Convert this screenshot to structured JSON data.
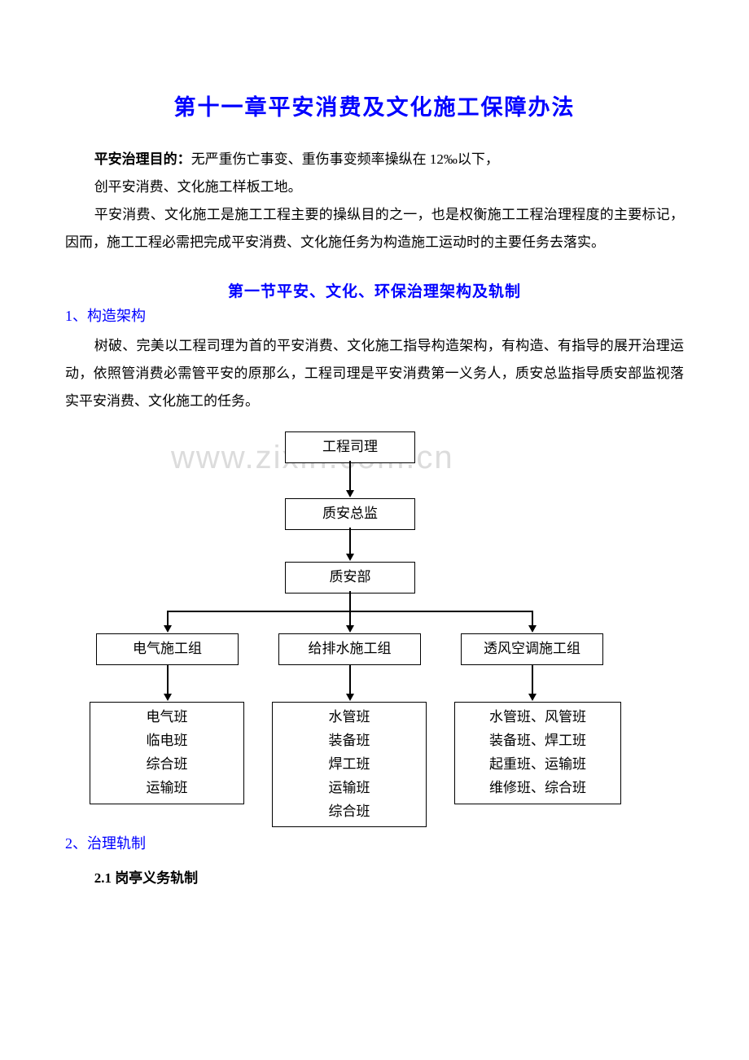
{
  "chapter_title": "第十一章平安消费及文化施工保障办法",
  "para1_bold": "平安治理目的：",
  "para1_rest": "无严重伤亡事变、重伤事变频率操纵在 12‰以下，",
  "para2": "创平安消费、文化施工样板工地。",
  "para3": "平安消费、文化施工是施工工程主要的操纵目的之一，也是权衡施工工程治理程度的主要标记，因而，施工工程必需把完成平安消费、文化施任务为构造施工运动时的主要任务去落实。",
  "section_title": "第一节平安、文化、环保治理架构及轨制",
  "sub1": "1、构造架构",
  "para4": "树破、完美以工程司理为首的平安消费、文化施工指导构造架构，有构造、有指导的展开治理运动，依照管消费必需管平安的原那么，工程司理是平安消费第一义务人，质安总监指导质安部监视落实平安消费、文化施工的任务。",
  "watermark": "www.zixin.com.cn",
  "flow": {
    "n1": "工程司理",
    "n2": "质安总监",
    "n3": "质安部",
    "m1": "电气施工组",
    "m2": "给排水施工组",
    "m3": "透风空调施工组",
    "l1": [
      "电气班",
      "临电班",
      "综合班",
      "运输班"
    ],
    "l2": [
      "水管班",
      "装备班",
      "焊工班",
      "运输班",
      "综合班"
    ],
    "l3": [
      "水管班、风管班",
      "装备班、焊工班",
      "起重班、运输班",
      "维修班、综合班"
    ]
  },
  "sub2": "2、治理轨制",
  "sub2_1": "2.1 岗亭义务轨制"
}
